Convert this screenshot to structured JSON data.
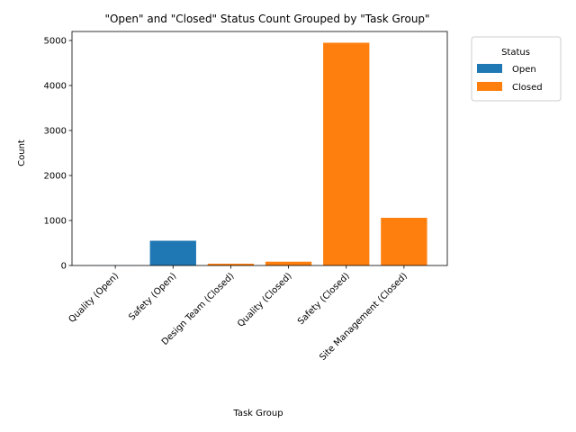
{
  "chart_data": {
    "type": "bar",
    "title": "\"Open\" and \"Closed\" Status Count Grouped by \"Task Group\"",
    "xlabel": "Task Group",
    "ylabel": "Count",
    "categories": [
      "Quality (Open)",
      "Safety (Open)",
      "Design Team (Closed)",
      "Quality (Closed)",
      "Safety (Closed)",
      "Site Management (Closed)"
    ],
    "series": [
      {
        "name": "Open",
        "color": "#1f77b4",
        "values": [
          2,
          550,
          0,
          0,
          0,
          0
        ]
      },
      {
        "name": "Closed",
        "color": "#ff7f0e",
        "values": [
          0,
          0,
          40,
          85,
          4950,
          1060
        ]
      }
    ],
    "ylim": [
      0,
      5200
    ],
    "yticks": [
      0,
      1000,
      2000,
      3000,
      4000,
      5000
    ],
    "grid": false,
    "legend": {
      "title": "Status",
      "placement": "outside-upper-right"
    }
  }
}
